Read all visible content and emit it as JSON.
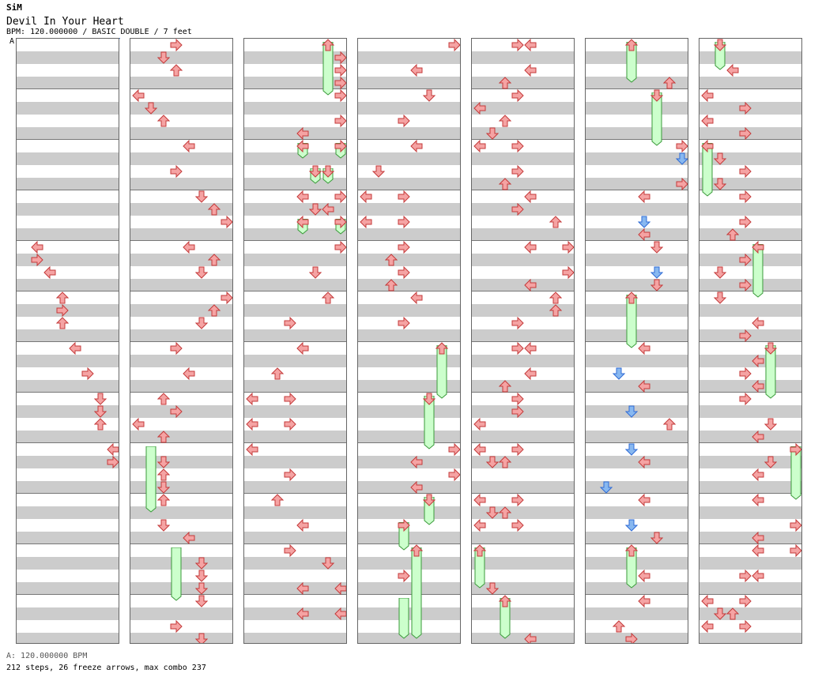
{
  "header": {
    "artist": "SiM",
    "title": "Devil In Your Heart",
    "info": "BPM: 120.000000 / BASIC DOUBLE / 7 feet",
    "bpm_marker": "A"
  },
  "footer": {
    "bpm": "A: 120.000000 BPM",
    "stats": "212 steps, 26 freeze arrows, max combo 237"
  },
  "colors": {
    "arrow_red": "#f5a3a3",
    "arrow_stroke": "#c43a3a",
    "arrow_blue": "#88b8f0",
    "arrow_blue_stroke": "#2f6bd6",
    "freeze_fill": "#ccffcc",
    "freeze_stroke": "#3a9a3a",
    "row_shade": "#cccccc"
  },
  "columns": [
    {
      "arrows": [
        [
          1,
          16,
          "L"
        ],
        [
          1,
          17,
          "R"
        ],
        [
          2,
          18,
          "L"
        ],
        [
          3,
          20,
          "U"
        ],
        [
          3,
          21,
          "R"
        ],
        [
          3,
          22,
          "U"
        ],
        [
          4,
          24,
          "L"
        ],
        [
          5,
          26,
          "R"
        ],
        [
          6,
          28,
          "D"
        ],
        [
          6,
          29,
          "D"
        ],
        [
          6,
          30,
          "U"
        ],
        [
          7,
          32,
          "L"
        ],
        [
          7,
          33,
          "R"
        ],
        [
          8,
          34,
          "R"
        ],
        [
          8,
          35,
          "L"
        ],
        [
          8,
          36,
          "L"
        ],
        [
          9,
          38,
          "U"
        ],
        [
          10,
          39,
          "D"
        ],
        [
          11,
          40,
          "L"
        ],
        [
          11,
          42,
          "R"
        ],
        [
          11,
          43,
          "L"
        ]
      ],
      "freezes": []
    },
    {
      "arrows": [
        [
          3,
          0,
          "R"
        ],
        [
          2,
          1,
          "D"
        ],
        [
          3,
          2,
          "U"
        ],
        [
          0,
          4,
          "L"
        ],
        [
          1,
          5,
          "D"
        ],
        [
          2,
          6,
          "U"
        ],
        [
          4,
          8,
          "L"
        ],
        [
          3,
          10,
          "R"
        ],
        [
          5,
          12,
          "D"
        ],
        [
          6,
          13,
          "U"
        ],
        [
          7,
          14,
          "R"
        ],
        [
          4,
          16,
          "L"
        ],
        [
          6,
          17,
          "U"
        ],
        [
          5,
          18,
          "D"
        ],
        [
          7,
          20,
          "R"
        ],
        [
          6,
          21,
          "U"
        ],
        [
          5,
          22,
          "D"
        ],
        [
          3,
          24,
          "R"
        ],
        [
          4,
          26,
          "L"
        ],
        [
          2,
          28,
          "U"
        ],
        [
          3,
          29,
          "R"
        ],
        [
          0,
          30,
          "L"
        ],
        [
          2,
          31,
          "U"
        ],
        [
          2,
          33,
          "D"
        ],
        [
          2,
          34,
          "U"
        ],
        [
          2,
          35,
          "D"
        ],
        [
          2,
          36,
          "U"
        ],
        [
          2,
          38,
          "D"
        ],
        [
          4,
          39,
          "L"
        ],
        [
          5,
          41,
          "D"
        ],
        [
          5,
          42,
          "D"
        ],
        [
          5,
          43,
          "D"
        ],
        [
          5,
          44,
          "D"
        ],
        [
          3,
          46,
          "R"
        ],
        [
          5,
          47,
          "D"
        ]
      ],
      "freezes": [
        [
          1,
          32,
          37
        ],
        [
          3,
          40,
          44
        ]
      ]
    },
    {
      "arrows": [
        [
          6,
          0,
          "U"
        ],
        [
          7,
          1,
          "R"
        ],
        [
          7,
          2,
          "R"
        ],
        [
          7,
          3,
          "R"
        ],
        [
          7,
          4,
          "R"
        ],
        [
          7,
          6,
          "R"
        ],
        [
          4,
          7,
          "L"
        ],
        [
          7,
          8,
          "R"
        ],
        [
          4,
          8,
          "L"
        ],
        [
          5,
          10,
          "D"
        ],
        [
          6,
          10,
          "D"
        ],
        [
          4,
          12,
          "L"
        ],
        [
          7,
          12,
          "R"
        ],
        [
          5,
          13,
          "D"
        ],
        [
          6,
          13,
          "L"
        ],
        [
          4,
          14,
          "L"
        ],
        [
          7,
          14,
          "R"
        ],
        [
          7,
          16,
          "R"
        ],
        [
          5,
          18,
          "D"
        ],
        [
          6,
          20,
          "U"
        ],
        [
          3,
          22,
          "R"
        ],
        [
          4,
          24,
          "L"
        ],
        [
          2,
          26,
          "U"
        ],
        [
          0,
          28,
          "L"
        ],
        [
          3,
          28,
          "R"
        ],
        [
          0,
          30,
          "L"
        ],
        [
          3,
          30,
          "R"
        ],
        [
          0,
          32,
          "L"
        ],
        [
          3,
          34,
          "R"
        ],
        [
          2,
          36,
          "U"
        ],
        [
          4,
          38,
          "L"
        ],
        [
          3,
          40,
          "R"
        ],
        [
          6,
          41,
          "D"
        ],
        [
          4,
          43,
          "L"
        ],
        [
          7,
          43,
          "L"
        ],
        [
          4,
          45,
          "L"
        ],
        [
          7,
          45,
          "L"
        ]
      ],
      "freezes": [
        [
          6,
          0,
          4
        ],
        [
          4,
          8,
          9
        ],
        [
          7,
          8,
          9
        ],
        [
          5,
          10,
          11
        ],
        [
          6,
          10,
          11
        ],
        [
          4,
          14,
          15
        ],
        [
          7,
          14,
          15
        ]
      ]
    },
    {
      "arrows": [
        [
          7,
          0,
          "R"
        ],
        [
          4,
          2,
          "L"
        ],
        [
          5,
          4,
          "D"
        ],
        [
          3,
          6,
          "R"
        ],
        [
          4,
          8,
          "L"
        ],
        [
          1,
          10,
          "D"
        ],
        [
          0,
          12,
          "L"
        ],
        [
          3,
          12,
          "R"
        ],
        [
          0,
          14,
          "L"
        ],
        [
          3,
          14,
          "R"
        ],
        [
          3,
          16,
          "R"
        ],
        [
          2,
          17,
          "U"
        ],
        [
          3,
          18,
          "R"
        ],
        [
          2,
          19,
          "U"
        ],
        [
          4,
          20,
          "L"
        ],
        [
          3,
          22,
          "R"
        ],
        [
          6,
          24,
          "U"
        ],
        [
          5,
          28,
          "D"
        ],
        [
          7,
          32,
          "R"
        ],
        [
          4,
          33,
          "L"
        ],
        [
          7,
          34,
          "R"
        ],
        [
          4,
          35,
          "L"
        ],
        [
          5,
          36,
          "D"
        ],
        [
          3,
          38,
          "R"
        ],
        [
          4,
          40,
          "U"
        ],
        [
          3,
          42,
          "R"
        ]
      ],
      "freezes": [
        [
          6,
          24,
          28
        ],
        [
          5,
          28,
          32
        ],
        [
          5,
          36,
          38
        ],
        [
          3,
          38,
          40
        ],
        [
          4,
          40,
          47
        ],
        [
          3,
          44,
          47
        ]
      ]
    },
    {
      "arrows": [
        [
          3,
          0,
          "R"
        ],
        [
          4,
          0,
          "L"
        ],
        [
          4,
          2,
          "L"
        ],
        [
          2,
          3,
          "U"
        ],
        [
          3,
          4,
          "R"
        ],
        [
          0,
          5,
          "L"
        ],
        [
          2,
          6,
          "U"
        ],
        [
          1,
          7,
          "D"
        ],
        [
          0,
          8,
          "L"
        ],
        [
          3,
          8,
          "R"
        ],
        [
          3,
          10,
          "R"
        ],
        [
          2,
          11,
          "U"
        ],
        [
          4,
          12,
          "L"
        ],
        [
          3,
          13,
          "R"
        ],
        [
          6,
          14,
          "U"
        ],
        [
          4,
          16,
          "L"
        ],
        [
          7,
          16,
          "R"
        ],
        [
          7,
          18,
          "R"
        ],
        [
          4,
          19,
          "L"
        ],
        [
          6,
          20,
          "U"
        ],
        [
          6,
          21,
          "U"
        ],
        [
          3,
          22,
          "R"
        ],
        [
          3,
          24,
          "R"
        ],
        [
          4,
          24,
          "L"
        ],
        [
          4,
          26,
          "L"
        ],
        [
          2,
          27,
          "U"
        ],
        [
          3,
          28,
          "R"
        ],
        [
          3,
          29,
          "R"
        ],
        [
          0,
          30,
          "L"
        ],
        [
          0,
          32,
          "L"
        ],
        [
          3,
          32,
          "R"
        ],
        [
          1,
          33,
          "D"
        ],
        [
          2,
          33,
          "U"
        ],
        [
          0,
          36,
          "L"
        ],
        [
          3,
          36,
          "R"
        ],
        [
          1,
          37,
          "D"
        ],
        [
          2,
          37,
          "U"
        ],
        [
          0,
          38,
          "L"
        ],
        [
          3,
          38,
          "R"
        ],
        [
          0,
          40,
          "U"
        ],
        [
          1,
          43,
          "D"
        ],
        [
          2,
          44,
          "U"
        ],
        [
          4,
          47,
          "L"
        ]
      ],
      "freezes": [
        [
          0,
          40,
          43
        ],
        [
          2,
          44,
          47
        ]
      ]
    },
    {
      "arrows": [
        [
          3,
          0,
          "U"
        ],
        [
          6,
          3,
          "U"
        ],
        [
          5,
          4,
          "D"
        ],
        [
          7,
          8,
          "R"
        ],
        [
          7,
          9,
          "B"
        ],
        [
          7,
          11,
          "R"
        ],
        [
          4,
          12,
          "L"
        ],
        [
          4,
          14,
          "B"
        ],
        [
          4,
          15,
          "L"
        ],
        [
          5,
          16,
          "D"
        ],
        [
          5,
          18,
          "B"
        ],
        [
          5,
          19,
          "D"
        ],
        [
          3,
          20,
          "U"
        ],
        [
          4,
          24,
          "L"
        ],
        [
          2,
          26,
          "B"
        ],
        [
          4,
          27,
          "L"
        ],
        [
          3,
          29,
          "B"
        ],
        [
          6,
          30,
          "U"
        ],
        [
          3,
          32,
          "B"
        ],
        [
          4,
          33,
          "L"
        ],
        [
          1,
          35,
          "B"
        ],
        [
          4,
          36,
          "L"
        ],
        [
          3,
          38,
          "B"
        ],
        [
          5,
          39,
          "D"
        ],
        [
          3,
          40,
          "U"
        ],
        [
          4,
          42,
          "L"
        ],
        [
          4,
          44,
          "L"
        ],
        [
          2,
          46,
          "U"
        ],
        [
          3,
          47,
          "R"
        ]
      ],
      "freezes": [
        [
          3,
          0,
          3
        ],
        [
          5,
          4,
          8
        ],
        [
          3,
          20,
          24
        ],
        [
          3,
          40,
          43
        ]
      ]
    },
    {
      "arrows": [
        [
          1,
          0,
          "D"
        ],
        [
          2,
          2,
          "L"
        ],
        [
          0,
          4,
          "L"
        ],
        [
          3,
          5,
          "R"
        ],
        [
          0,
          6,
          "L"
        ],
        [
          3,
          7,
          "R"
        ],
        [
          0,
          8,
          "L"
        ],
        [
          1,
          9,
          "D"
        ],
        [
          3,
          10,
          "R"
        ],
        [
          1,
          11,
          "D"
        ],
        [
          3,
          12,
          "R"
        ],
        [
          3,
          14,
          "R"
        ],
        [
          2,
          15,
          "U"
        ],
        [
          4,
          16,
          "L"
        ],
        [
          3,
          17,
          "R"
        ],
        [
          1,
          18,
          "D"
        ],
        [
          3,
          19,
          "R"
        ],
        [
          1,
          20,
          "D"
        ],
        [
          4,
          22,
          "L"
        ],
        [
          3,
          23,
          "R"
        ],
        [
          5,
          24,
          "D"
        ],
        [
          4,
          25,
          "L"
        ],
        [
          3,
          26,
          "R"
        ],
        [
          4,
          27,
          "L"
        ],
        [
          3,
          28,
          "R"
        ],
        [
          5,
          30,
          "D"
        ],
        [
          4,
          31,
          "L"
        ],
        [
          7,
          32,
          "R"
        ],
        [
          5,
          33,
          "D"
        ],
        [
          4,
          34,
          "L"
        ],
        [
          4,
          36,
          "L"
        ],
        [
          7,
          38,
          "R"
        ],
        [
          4,
          39,
          "L"
        ],
        [
          4,
          40,
          "L"
        ],
        [
          7,
          40,
          "R"
        ],
        [
          3,
          42,
          "R"
        ],
        [
          4,
          42,
          "L"
        ],
        [
          0,
          44,
          "L"
        ],
        [
          3,
          44,
          "R"
        ],
        [
          1,
          45,
          "D"
        ],
        [
          2,
          45,
          "U"
        ],
        [
          0,
          46,
          "L"
        ],
        [
          3,
          46,
          "R"
        ]
      ],
      "freezes": [
        [
          1,
          0,
          2
        ],
        [
          0,
          8,
          12
        ],
        [
          4,
          16,
          20
        ],
        [
          5,
          24,
          28
        ],
        [
          7,
          32,
          36
        ]
      ]
    }
  ]
}
